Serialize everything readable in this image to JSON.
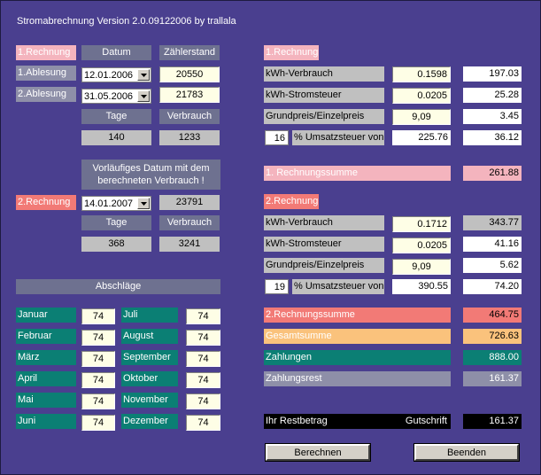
{
  "window_title": "Stromabrechnung   Version 2.0.09122006 by trallala",
  "left": {
    "r1_label": "1.Rechnung",
    "col_datum": "Datum",
    "col_zaehlerstand": "Zählerstand",
    "ablesung1_label": "1.Ablesung",
    "ablesung1_date": "12.01.2006",
    "ablesung1_value": "20550",
    "ablesung2_label": "2.Ablesung",
    "ablesung2_date": "31.05.2006",
    "ablesung2_value": "21783",
    "col_tage": "Tage",
    "col_verbrauch": "Verbrauch",
    "tage1": "140",
    "verbrauch1": "1233",
    "note": "Vorläufiges Datum mit dem berechneten Verbrauch !",
    "r2_label": "2.Rechnung",
    "r2_date": "14.01.2007",
    "r2_value": "23791",
    "col_tage2": "Tage",
    "col_verbrauch2": "Verbrauch",
    "tage2": "368",
    "verbrauch2": "3241",
    "abschlaege_label": "Abschläge",
    "months": [
      {
        "name": "Januar",
        "value": "74"
      },
      {
        "name": "Februar",
        "value": "74"
      },
      {
        "name": "März",
        "value": "74"
      },
      {
        "name": "April",
        "value": "74"
      },
      {
        "name": "Mai",
        "value": "74"
      },
      {
        "name": "Juni",
        "value": "74"
      },
      {
        "name": "Juli",
        "value": "74"
      },
      {
        "name": "August",
        "value": "74"
      },
      {
        "name": "September",
        "value": "74"
      },
      {
        "name": "Oktober",
        "value": "74"
      },
      {
        "name": "November",
        "value": "74"
      },
      {
        "name": "Dezember",
        "value": "74"
      }
    ]
  },
  "right": {
    "r1_label": "1.Rechnung",
    "r1_kwh_label": "kWh-Verbrauch",
    "r1_kwh_price": "0.1598",
    "r1_kwh_total": "197.03",
    "r1_steuer_label": "kWh-Stromsteuer",
    "r1_steuer_price": "0.0205",
    "r1_steuer_total": "25.28",
    "r1_grund_label": "Grundpreis/Einzelpreis",
    "r1_grund_price": "9,09",
    "r1_grund_total": "3.45",
    "r1_ust_pct": "16",
    "r1_ust_label": "% Umsatzsteuer von",
    "r1_ust_base": "225.76",
    "r1_ust_total": "36.12",
    "r1_sum_label": "1. Rechnungssumme",
    "r1_sum": "261.88",
    "r2_label": "2.Rechnung",
    "r2_kwh_label": "kWh-Verbrauch",
    "r2_kwh_price": "0.1712",
    "r2_kwh_total": "343.77",
    "r2_steuer_label": "kWh-Stromsteuer",
    "r2_steuer_price": "0.0205",
    "r2_steuer_total": "41.16",
    "r2_grund_label": "Grundpreis/Einzelpreis",
    "r2_grund_price": "9,09",
    "r2_grund_total": "5.62",
    "r2_ust_pct": "19",
    "r2_ust_label": "% Umsatzsteuer von",
    "r2_ust_base": "390.55",
    "r2_ust_total": "74.20",
    "r2_sum_label": "2.Rechnungssumme",
    "r2_sum": "464.75",
    "gesamt_label": "Gesamtsumme",
    "gesamt": "726.63",
    "zahlungen_label": "Zahlungen",
    "zahlungen": "888.00",
    "rest_label": "Zahlungsrest",
    "rest": "161.37",
    "restbetrag_label": "Ihr Restbetrag",
    "gutschrift_label": "Gutschrift",
    "restbetrag": "161.37"
  },
  "buttons": {
    "berechnen": "Berechnen",
    "beenden": "Beenden"
  },
  "colors": {
    "background": "#4a3f8f",
    "pink": "#f4b4be",
    "red": "#f27a76",
    "teal": "#0b7f74",
    "orange": "#fac27c"
  }
}
